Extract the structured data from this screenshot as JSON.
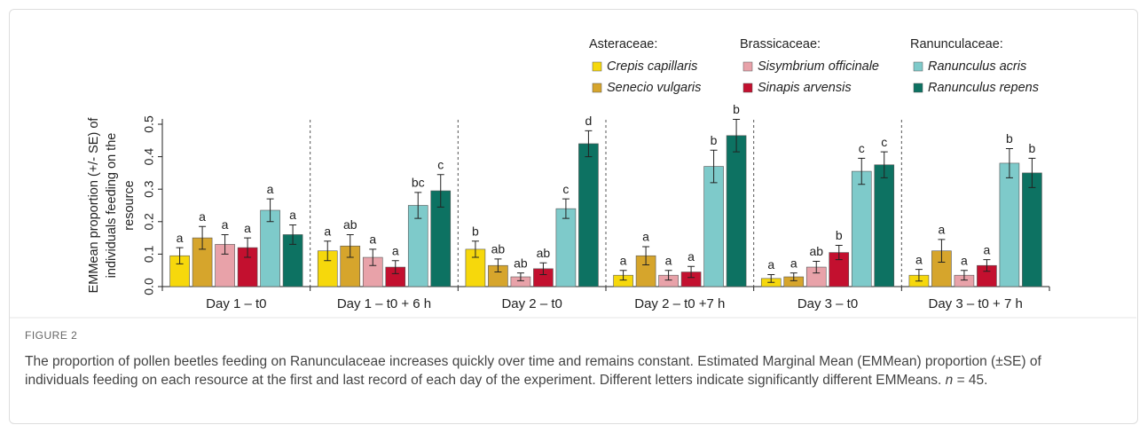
{
  "chart_data": {
    "type": "bar",
    "ylabel": [
      "EMMean proportion (+/- SE)  of",
      "individuals feeding on the",
      "resource"
    ],
    "categories": [
      "Day 1 – t0",
      "Day 1 – t0 + 6 h",
      "Day 2 – t0",
      "Day 2 – t0 +7 h",
      "Day 3 – t0",
      "Day 3 – t0 + 7 h"
    ],
    "legend_headers": [
      "Asteraceae:",
      "Brassicaceae:",
      "Ranunculaceae:"
    ],
    "series": [
      {
        "name": "Crepis capillaris",
        "color": "#f6d80c",
        "values": [
          0.095,
          0.11,
          0.115,
          0.035,
          0.025,
          0.035
        ],
        "errors": [
          0.025,
          0.03,
          0.025,
          0.015,
          0.012,
          0.018
        ],
        "letters": [
          "a",
          "a",
          "b",
          "a",
          "a",
          "a"
        ]
      },
      {
        "name": "Senecio vulgaris",
        "color": "#d6a52c",
        "values": [
          0.15,
          0.125,
          0.065,
          0.095,
          0.03,
          0.11
        ],
        "errors": [
          0.035,
          0.035,
          0.02,
          0.028,
          0.012,
          0.035
        ],
        "letters": [
          "a",
          "ab",
          "ab",
          "a",
          "a",
          "a"
        ]
      },
      {
        "name": "Sisymbrium officinale",
        "color": "#e8a2a9",
        "values": [
          0.13,
          0.09,
          0.03,
          0.035,
          0.06,
          0.035
        ],
        "errors": [
          0.03,
          0.025,
          0.012,
          0.015,
          0.018,
          0.015
        ],
        "letters": [
          "a",
          "a",
          "ab",
          "a",
          "ab",
          "a"
        ]
      },
      {
        "name": "Sinapis arvensis",
        "color": "#c3102f",
        "values": [
          0.12,
          0.06,
          0.055,
          0.045,
          0.105,
          0.065
        ],
        "errors": [
          0.03,
          0.02,
          0.018,
          0.017,
          0.022,
          0.018
        ],
        "letters": [
          "a",
          "a",
          "ab",
          "a",
          "b",
          "a"
        ]
      },
      {
        "name": "Ranunculus acris",
        "color": "#7ecaca",
        "values": [
          0.235,
          0.25,
          0.24,
          0.37,
          0.355,
          0.38
        ],
        "errors": [
          0.035,
          0.04,
          0.03,
          0.05,
          0.04,
          0.045
        ],
        "letters": [
          "a",
          "bc",
          "c",
          "b",
          "c",
          "b"
        ]
      },
      {
        "name": "Ranunculus repens",
        "color": "#0d7262",
        "values": [
          0.16,
          0.295,
          0.44,
          0.465,
          0.375,
          0.35
        ],
        "errors": [
          0.03,
          0.05,
          0.04,
          0.05,
          0.04,
          0.045
        ],
        "letters": [
          "a",
          "c",
          "d",
          "b",
          "c",
          "b"
        ]
      }
    ],
    "ylim": [
      0,
      0.5
    ],
    "yticks": [
      {
        "value": 0,
        "label": "0.0"
      },
      0.1,
      0.2,
      0.3,
      0.4,
      0.5
    ],
    "grid": false
  },
  "caption": {
    "label": "FIGURE 2",
    "text": "The proportion of pollen beetles feeding on Ranunculaceae increases quickly over time and remains constant. Estimated Marginal Mean (EMMean) proportion (±SE) of individuals feeding on each resource at the first and last record of each day of the experiment. Different letters indicate significantly different EMMeans. ",
    "n": "n",
    "n_text": " = 45."
  }
}
